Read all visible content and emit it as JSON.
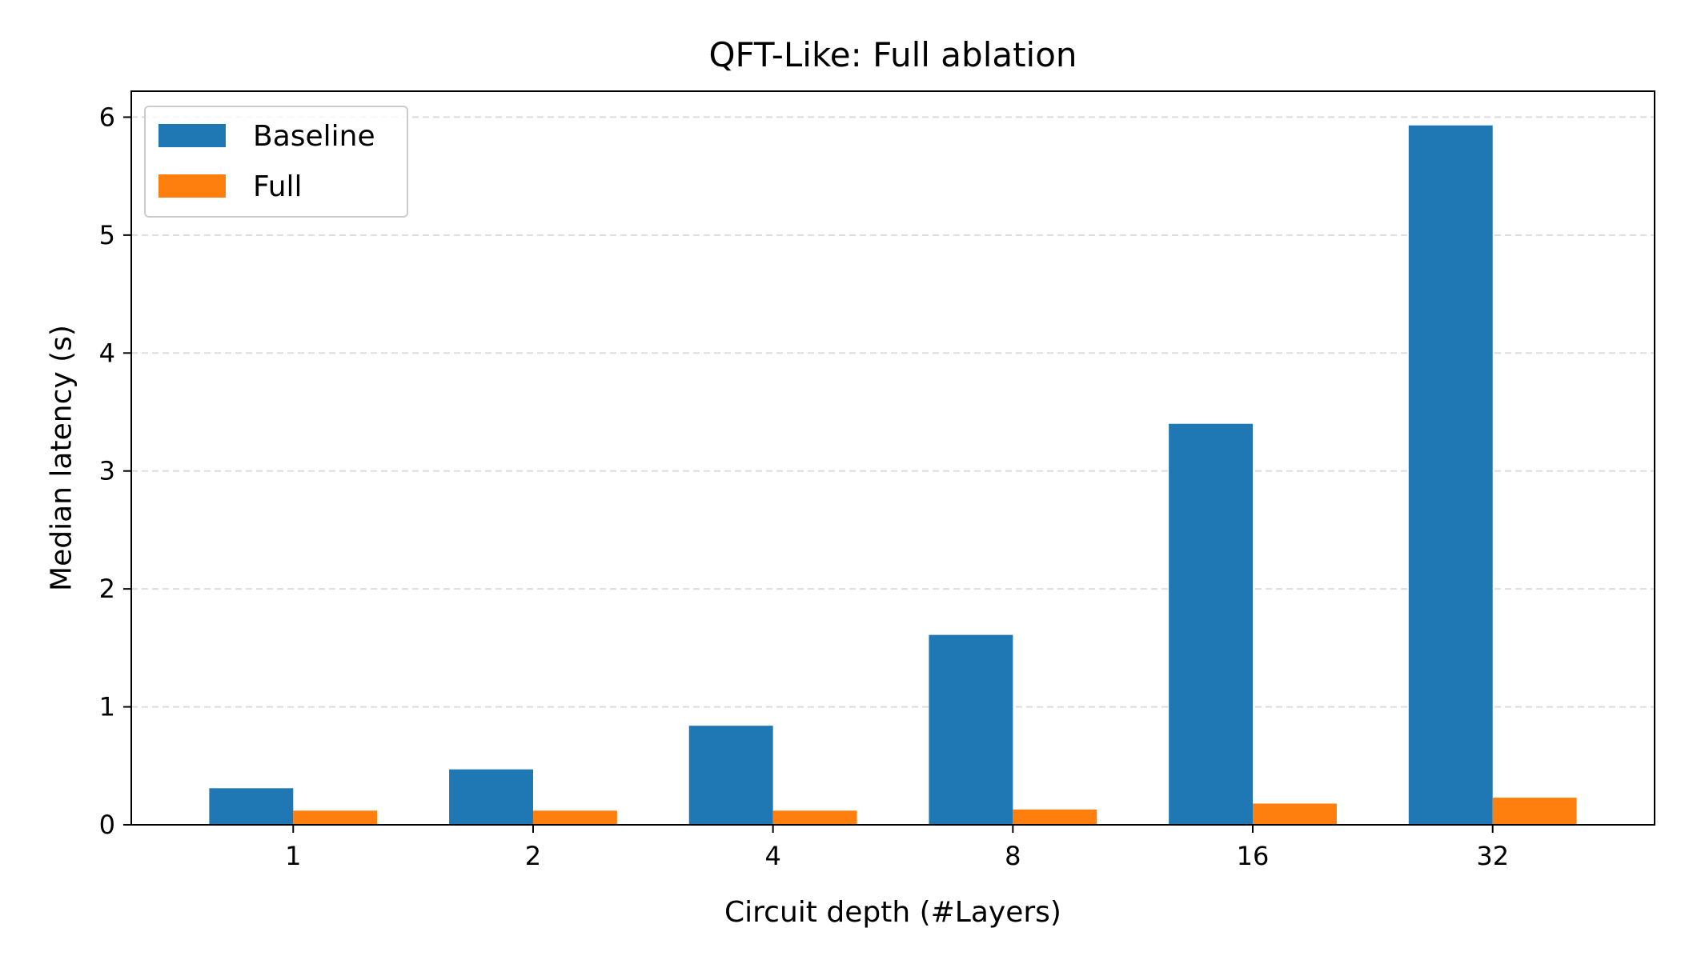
{
  "chart_data": {
    "type": "bar",
    "title": "QFT-Like: Full ablation",
    "xlabel": "Circuit depth (#Layers)",
    "ylabel": "Median latency (s)",
    "categories": [
      "1",
      "2",
      "4",
      "8",
      "16",
      "32"
    ],
    "series": [
      {
        "name": "Baseline",
        "color": "#1f77b4",
        "values": [
          0.31,
          0.47,
          0.84,
          1.61,
          3.4,
          5.93
        ]
      },
      {
        "name": "Full",
        "color": "#ff7f0e",
        "values": [
          0.12,
          0.12,
          0.12,
          0.13,
          0.18,
          0.23
        ]
      }
    ],
    "ylim": [
      0,
      6.22
    ],
    "yticks": [
      0,
      1,
      2,
      3,
      4,
      5,
      6
    ],
    "grid": {
      "y": true,
      "style": "dashed"
    },
    "legend": {
      "position": "top-left"
    }
  }
}
